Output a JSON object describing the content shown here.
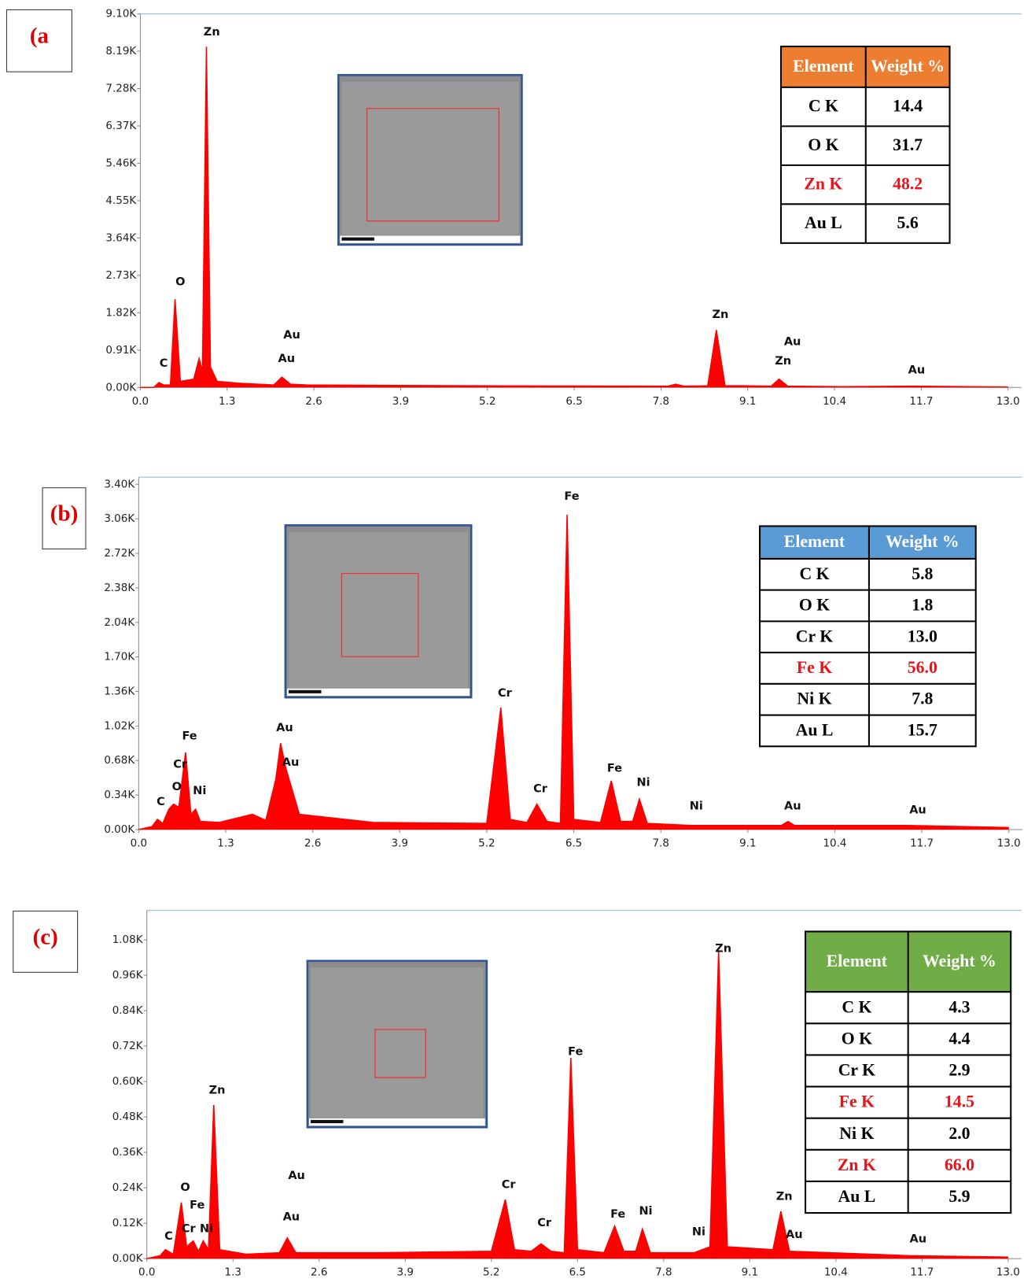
{
  "chart_data": [
    {
      "type": "spectrum",
      "panel_label": "(a",
      "color": "#ff0000",
      "x": [
        0,
        0.2,
        0.28,
        0.35,
        0.45,
        0.52,
        0.6,
        0.8,
        0.88,
        0.93,
        0.99,
        1.05,
        1.15,
        1.5,
        2.0,
        2.12,
        2.25,
        2.5,
        5.0,
        7.9,
        8.02,
        8.15,
        8.5,
        8.63,
        8.76,
        9.0,
        9.45,
        9.57,
        9.7,
        10.5,
        11.6,
        13.0
      ],
      "values": [
        0,
        0,
        120,
        60,
        60,
        2150,
        150,
        200,
        700,
        400,
        8300,
        500,
        150,
        100,
        60,
        250,
        80,
        60,
        40,
        30,
        80,
        30,
        40,
        1400,
        40,
        40,
        30,
        200,
        30,
        20,
        30,
        10
      ],
      "xlim": [
        0,
        13.2
      ],
      "ylim": [
        0,
        9100
      ],
      "xticks": [
        {
          "value": 0,
          "label": "0.0"
        },
        1.3,
        2.6,
        3.9,
        5.2,
        6.5,
        7.8,
        9.1,
        10.4,
        11.7,
        {
          "value": 13,
          "label": "13.0"
        }
      ],
      "yticks": [
        {
          "value": 0,
          "label": "0.00K"
        },
        {
          "value": 910,
          "label": "0.91K"
        },
        {
          "value": 1820,
          "label": "1.82K"
        },
        {
          "value": 2730,
          "label": "2.73K"
        },
        {
          "value": 3640,
          "label": "3.64K"
        },
        {
          "value": 4550,
          "label": "4.55K"
        },
        {
          "value": 5460,
          "label": "5.46K"
        },
        {
          "value": 6370,
          "label": "6.37K"
        },
        {
          "value": 7280,
          "label": "7.28K"
        },
        {
          "value": 8190,
          "label": "8.19K"
        },
        {
          "value": 9100,
          "label": "9.10K"
        }
      ],
      "annotations": [
        {
          "text": "Zn",
          "x": 1.07,
          "y": 8650
        },
        {
          "text": "O",
          "x": 0.6,
          "y": 2560
        },
        {
          "text": "C",
          "x": 0.35,
          "y": 580
        },
        {
          "text": "Au",
          "x": 2.27,
          "y": 1270
        },
        {
          "text": "Au",
          "x": 2.19,
          "y": 700
        },
        {
          "text": "Zn",
          "x": 8.69,
          "y": 1770
        },
        {
          "text": "Au",
          "x": 9.77,
          "y": 1110
        },
        {
          "text": "Zn",
          "x": 9.63,
          "y": 640
        },
        {
          "text": "Au",
          "x": 11.63,
          "y": 420
        }
      ],
      "table": {
        "header": [
          "Element",
          "Weight %"
        ],
        "header_color": "#ed7d31",
        "rows": [
          [
            "C K",
            "14.4"
          ],
          [
            "O K",
            "31.7"
          ],
          [
            "Zn K",
            "48.2"
          ],
          [
            "Au L",
            "5.6"
          ]
        ],
        "row_colors": [
          "#000000",
          "#000000",
          "#e8141b",
          "#000000"
        ]
      }
    },
    {
      "type": "spectrum",
      "panel_label": "(b)",
      "color": "#ff0000",
      "x": [
        0,
        0.2,
        0.28,
        0.36,
        0.45,
        0.52,
        0.6,
        0.7,
        0.78,
        0.85,
        0.92,
        1.2,
        1.7,
        1.9,
        2.05,
        2.12,
        2.2,
        2.4,
        3.5,
        5.2,
        5.41,
        5.55,
        5.8,
        5.95,
        6.1,
        6.3,
        6.4,
        6.5,
        6.9,
        7.06,
        7.2,
        7.38,
        7.48,
        7.6,
        8.26,
        9.6,
        9.7,
        9.8,
        11.5,
        13.0
      ],
      "values": [
        0,
        30,
        100,
        60,
        200,
        250,
        220,
        760,
        150,
        200,
        80,
        70,
        150,
        90,
        500,
        850,
        600,
        150,
        70,
        60,
        1200,
        100,
        70,
        250,
        80,
        60,
        3100,
        100,
        70,
        480,
        80,
        80,
        300,
        60,
        40,
        40,
        80,
        40,
        40,
        20
      ],
      "xlim": [
        0,
        13.2
      ],
      "ylim": [
        0,
        3470
      ],
      "xticks": [
        {
          "value": 0,
          "label": "0.0"
        },
        1.3,
        2.6,
        3.9,
        5.2,
        6.5,
        7.8,
        9.1,
        10.4,
        11.7,
        {
          "value": 13,
          "label": "13.0"
        }
      ],
      "yticks": [
        {
          "value": 0,
          "label": "0.00K"
        },
        {
          "value": 340,
          "label": "0.34K"
        },
        {
          "value": 680,
          "label": "0.68K"
        },
        {
          "value": 1020,
          "label": "1.02K"
        },
        {
          "value": 1360,
          "label": "1.36K"
        },
        {
          "value": 1700,
          "label": "1.70K"
        },
        {
          "value": 2040,
          "label": "2.04K"
        },
        {
          "value": 2380,
          "label": "2.38K"
        },
        {
          "value": 2720,
          "label": "2.72K"
        },
        {
          "value": 3060,
          "label": "3.06K"
        },
        {
          "value": 3400,
          "label": "3.40K"
        }
      ],
      "annotations": [
        {
          "text": "Fe",
          "x": 6.47,
          "y": 3280
        },
        {
          "text": "Cr",
          "x": 5.47,
          "y": 1340
        },
        {
          "text": "Au",
          "x": 2.18,
          "y": 1000
        },
        {
          "text": "Au",
          "x": 2.27,
          "y": 660
        },
        {
          "text": "Fe",
          "x": 0.76,
          "y": 920
        },
        {
          "text": "Cr",
          "x": 0.62,
          "y": 640
        },
        {
          "text": "O",
          "x": 0.57,
          "y": 420
        },
        {
          "text": "Ni",
          "x": 0.91,
          "y": 380
        },
        {
          "text": "C",
          "x": 0.33,
          "y": 270
        },
        {
          "text": "Cr",
          "x": 6.0,
          "y": 400
        },
        {
          "text": "Fe",
          "x": 7.11,
          "y": 600
        },
        {
          "text": "Ni",
          "x": 7.54,
          "y": 460
        },
        {
          "text": "Ni",
          "x": 8.33,
          "y": 230
        },
        {
          "text": "Au",
          "x": 9.77,
          "y": 230
        },
        {
          "text": "Au",
          "x": 11.64,
          "y": 190
        }
      ],
      "table": {
        "header": [
          "Element",
          "Weight %"
        ],
        "header_color": "#5b9bd5",
        "rows": [
          [
            "C K",
            "5.8"
          ],
          [
            "O K",
            "1.8"
          ],
          [
            "Cr K",
            "13.0"
          ],
          [
            "Fe K",
            "56.0"
          ],
          [
            "Ni K",
            "7.8"
          ],
          [
            "Au L",
            "15.7"
          ]
        ],
        "row_colors": [
          "#000000",
          "#000000",
          "#000000",
          "#e8141b",
          "#000000",
          "#000000"
        ]
      }
    },
    {
      "type": "spectrum",
      "panel_label": "(c)",
      "color": "#ff0000",
      "x": [
        0,
        0.2,
        0.28,
        0.4,
        0.52,
        0.6,
        0.7,
        0.78,
        0.85,
        0.93,
        1.01,
        1.1,
        1.5,
        2.0,
        2.12,
        2.25,
        3.5,
        5.2,
        5.41,
        5.55,
        5.8,
        5.95,
        6.1,
        6.3,
        6.4,
        6.5,
        6.9,
        7.06,
        7.2,
        7.38,
        7.48,
        7.6,
        8.26,
        8.5,
        8.63,
        8.76,
        9.45,
        9.57,
        9.7,
        11.5,
        13.0
      ],
      "values": [
        0,
        10,
        30,
        15,
        190,
        40,
        60,
        25,
        60,
        30,
        520,
        30,
        15,
        20,
        70,
        20,
        20,
        25,
        200,
        30,
        25,
        50,
        25,
        20,
        680,
        30,
        20,
        110,
        25,
        25,
        100,
        20,
        20,
        40,
        1040,
        40,
        30,
        160,
        25,
        10,
        5
      ],
      "xlim": [
        0,
        13.2
      ],
      "ylim": [
        0,
        1180
      ],
      "xticks": [
        {
          "value": 0,
          "label": "0.0"
        },
        1.3,
        2.6,
        3.9,
        5.2,
        6.5,
        7.8,
        9.1,
        10.4,
        11.7,
        {
          "value": 13,
          "label": "13.0"
        }
      ],
      "yticks": [
        {
          "value": 0,
          "label": "0.00K"
        },
        {
          "value": 120,
          "label": "0.12K"
        },
        {
          "value": 240,
          "label": "0.24K"
        },
        {
          "value": 360,
          "label": "0.36K"
        },
        {
          "value": 480,
          "label": "0.48K"
        },
        {
          "value": 600,
          "label": "0.60K"
        },
        {
          "value": 720,
          "label": "0.72K"
        },
        {
          "value": 840,
          "label": "0.84K"
        },
        {
          "value": 960,
          "label": "0.96K"
        },
        {
          "value": 1080,
          "label": "1.08K"
        }
      ],
      "annotations": [
        {
          "text": "Zn",
          "x": 8.7,
          "y": 1050
        },
        {
          "text": "Fe",
          "x": 6.47,
          "y": 700
        },
        {
          "text": "Zn",
          "x": 1.06,
          "y": 570
        },
        {
          "text": "Au",
          "x": 2.26,
          "y": 280
        },
        {
          "text": "Au",
          "x": 2.18,
          "y": 140
        },
        {
          "text": "O",
          "x": 0.58,
          "y": 240
        },
        {
          "text": "Fe",
          "x": 0.76,
          "y": 180
        },
        {
          "text": "Cr",
          "x": 0.63,
          "y": 100
        },
        {
          "text": "Ni",
          "x": 0.9,
          "y": 100
        },
        {
          "text": "C",
          "x": 0.33,
          "y": 75
        },
        {
          "text": "Cr",
          "x": 5.46,
          "y": 250
        },
        {
          "text": "Cr",
          "x": 6.0,
          "y": 120
        },
        {
          "text": "Fe",
          "x": 7.11,
          "y": 150
        },
        {
          "text": "Ni",
          "x": 7.53,
          "y": 160
        },
        {
          "text": "Ni",
          "x": 8.33,
          "y": 90
        },
        {
          "text": "Zn",
          "x": 9.62,
          "y": 210
        },
        {
          "text": "Au",
          "x": 9.77,
          "y": 80
        },
        {
          "text": "Au",
          "x": 11.64,
          "y": 66
        }
      ],
      "table": {
        "header": [
          "Element",
          "Weight %"
        ],
        "header_color": "#70ad47",
        "rows": [
          [
            "C K",
            "4.3"
          ],
          [
            "O K",
            "4.4"
          ],
          [
            "Cr K",
            "2.9"
          ],
          [
            "Fe K",
            "14.5"
          ],
          [
            "Ni K",
            "2.0"
          ],
          [
            "Zn K",
            "66.0"
          ],
          [
            "Au L",
            "5.9"
          ]
        ],
        "row_colors": [
          "#000000",
          "#000000",
          "#000000",
          "#e8141b",
          "#000000",
          "#e8141b",
          "#000000"
        ]
      }
    }
  ]
}
